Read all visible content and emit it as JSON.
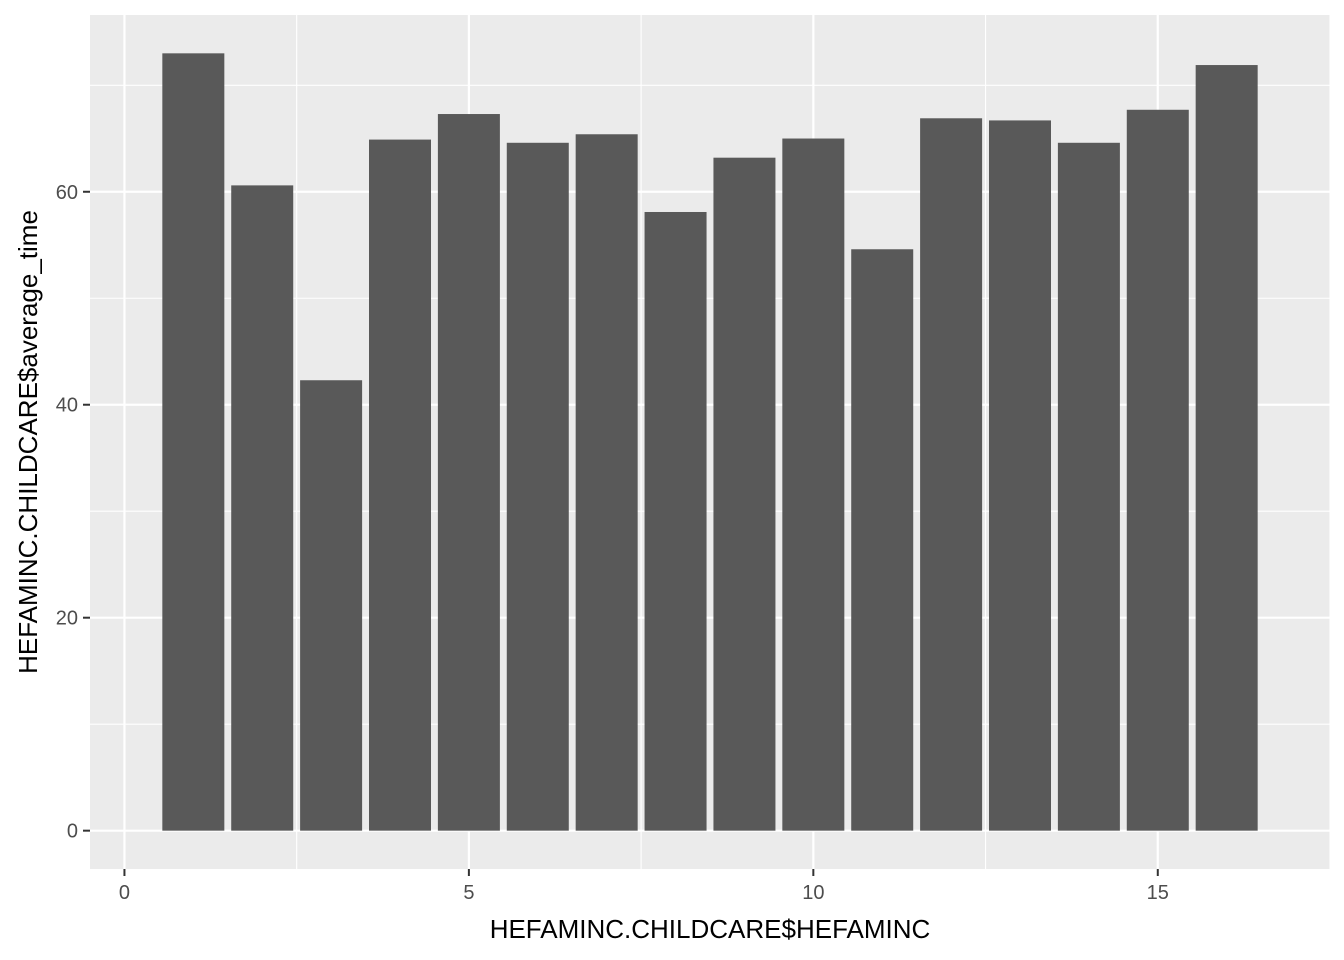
{
  "chart_data": {
    "type": "bar",
    "xlabel": "HEFAMINC.CHILDCARE$HEFAMINC",
    "ylabel": "HEFAMINC.CHILDCARE$average_time",
    "x": [
      1,
      2,
      3,
      4,
      5,
      6,
      7,
      8,
      9,
      10,
      11,
      12,
      13,
      14,
      15,
      16
    ],
    "values": [
      73.0,
      60.6,
      42.3,
      64.9,
      67.3,
      64.6,
      65.4,
      58.1,
      63.2,
      65.0,
      54.6,
      66.9,
      66.7,
      64.6,
      67.7,
      71.9
    ],
    "xlim": [
      -0.5,
      17.5
    ],
    "ylim": [
      -3.6,
      76.6
    ],
    "x_ticks": [
      0,
      5,
      10,
      15
    ],
    "x_tick_labels": [
      "0",
      "5",
      "10",
      "15"
    ],
    "y_ticks": [
      0,
      20,
      40,
      60
    ],
    "y_tick_labels": [
      "0",
      "20",
      "40",
      "60"
    ],
    "grid": true,
    "colors": {
      "bar": "#595959",
      "panel": "#ebebeb",
      "grid": "#ffffff"
    }
  }
}
